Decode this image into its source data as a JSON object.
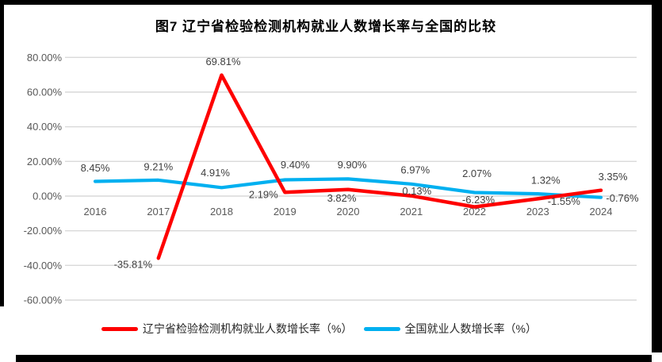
{
  "window": {
    "frame_color": "#000000",
    "background_color": "#ffffff"
  },
  "chart_data": {
    "type": "line",
    "title": "图7 辽宁省检验检测机构就业人数增长率与全国的比较",
    "categories": [
      "2016",
      "2017",
      "2018",
      "2019",
      "2020",
      "2021",
      "2022",
      "2023",
      "2024"
    ],
    "series": [
      {
        "name": "辽宁省检验检测机构就业人数增长率（%）",
        "color": "#fe0000",
        "values": [
          null,
          -35.81,
          69.81,
          2.19,
          3.82,
          0.13,
          -6.23,
          -1.55,
          3.35
        ]
      },
      {
        "name": "全国就业人数增长率（%）",
        "color": "#00b0f0",
        "values": [
          8.45,
          9.21,
          4.91,
          9.4,
          9.9,
          6.97,
          2.07,
          1.32,
          -0.76
        ]
      }
    ],
    "xlabel": "",
    "ylabel": "",
    "y_axis": {
      "ticks": [
        80,
        60,
        40,
        20,
        0,
        -20,
        -40,
        -60
      ],
      "tick_labels": [
        "80.00%",
        "60.00%",
        "40.00%",
        "20.00%",
        "0.00%",
        "-20.00%",
        "-40.00%",
        "-60.00%"
      ],
      "min": -60,
      "max": 80
    },
    "grid": true,
    "gridline_color": "#d9d9d9",
    "axis_text_color": "#595959",
    "data_label_color": "#404040",
    "data_labels": true,
    "legend_position": "bottom"
  }
}
